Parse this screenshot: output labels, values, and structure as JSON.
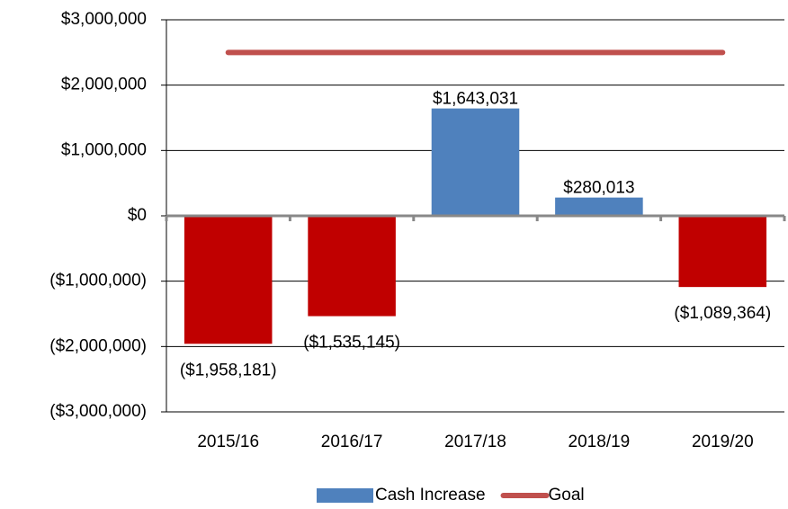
{
  "chart_data": {
    "type": "bar",
    "categories": [
      "2015/16",
      "2016/17",
      "2017/18",
      "2018/19",
      "2019/20"
    ],
    "series": [
      {
        "name": "Cash Increase",
        "type": "bar",
        "color": "#4f81bd",
        "negative_color": "#c00000",
        "values": [
          -1958181,
          -1535145,
          1643031,
          280013,
          -1089364
        ],
        "value_labels": [
          "($1,958,181)",
          "($1,535,145)",
          "$1,643,031",
          "$280,013",
          "($1,089,364)"
        ]
      },
      {
        "name": "Goal",
        "type": "line",
        "color": "#c0504d",
        "values": [
          2500000,
          2500000,
          2500000,
          2500000,
          2500000
        ]
      }
    ],
    "ylim": [
      -3000000,
      3000000
    ],
    "yticks": [
      {
        "value": -3000000,
        "label": "($3,000,000)"
      },
      {
        "value": -2000000,
        "label": "($2,000,000)"
      },
      {
        "value": -1000000,
        "label": "($1,000,000)"
      },
      {
        "value": 0,
        "label": "$0"
      },
      {
        "value": 1000000,
        "label": "$1,000,000"
      },
      {
        "value": 2000000,
        "label": "$2,000,000"
      },
      {
        "value": 3000000,
        "label": "$3,000,000"
      }
    ],
    "grid": true,
    "legend": "bottom"
  }
}
